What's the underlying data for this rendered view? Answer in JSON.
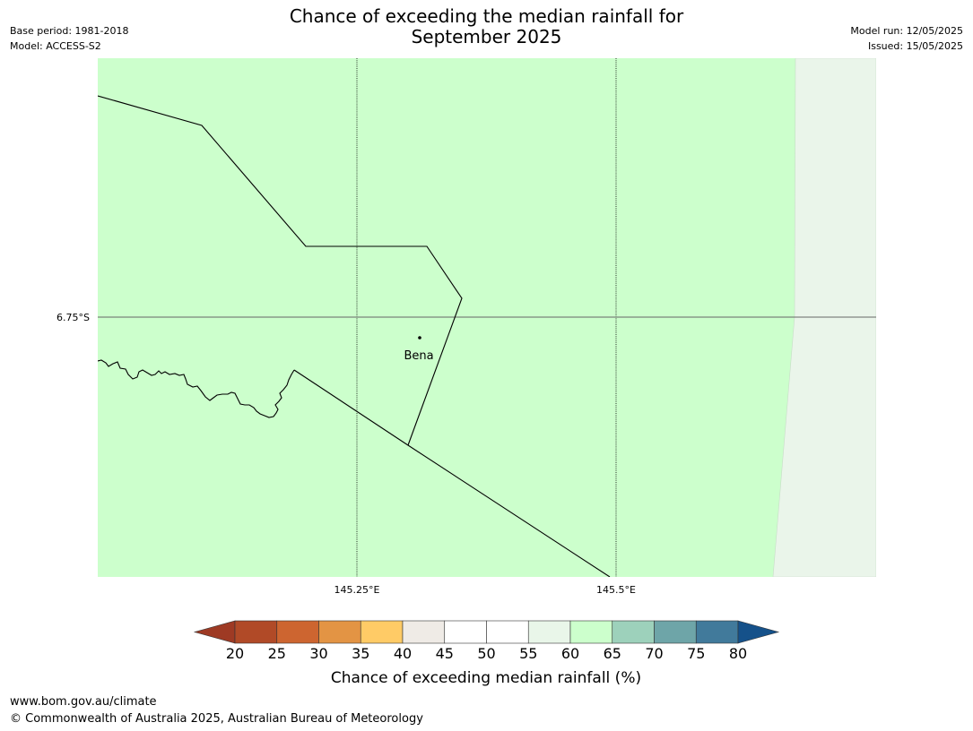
{
  "header": {
    "base_period": "Base period: 1981-2018",
    "model": "Model: ACCESS-S2",
    "title_line1": "Chance of exceeding the median rainfall for",
    "title_line2": "September 2025",
    "model_run": "Model run: 12/05/2025",
    "issued": "Issued: 15/05/2025"
  },
  "map": {
    "fill_colors": {
      "main": "#ccffcc",
      "east": "#eaf5ea"
    },
    "lat_label": "6.75°S",
    "lon_labels": [
      "145.25°E",
      "145.5°E"
    ],
    "place": {
      "name": "Bena"
    }
  },
  "colorbar": {
    "label": "Chance of exceeding median rainfall (%)",
    "ticks": [
      "20",
      "25",
      "30",
      "35",
      "40",
      "45",
      "50",
      "55",
      "60",
      "65",
      "70",
      "75",
      "80"
    ],
    "under_color": "#9e3a24",
    "over_color": "#15518a",
    "colors": [
      "#b14a27",
      "#cd6530",
      "#e39444",
      "#ffcb66",
      "#efebe6",
      "#ffffff",
      "#ffffff",
      "#e9f6e9",
      "#ccffcc",
      "#9dd1bb",
      "#6ea5a8",
      "#417a9b"
    ]
  },
  "footer": {
    "url": "www.bom.gov.au/climate",
    "copyright": "© Commonwealth of Australia 2025, Australian Bureau of Meteorology"
  }
}
